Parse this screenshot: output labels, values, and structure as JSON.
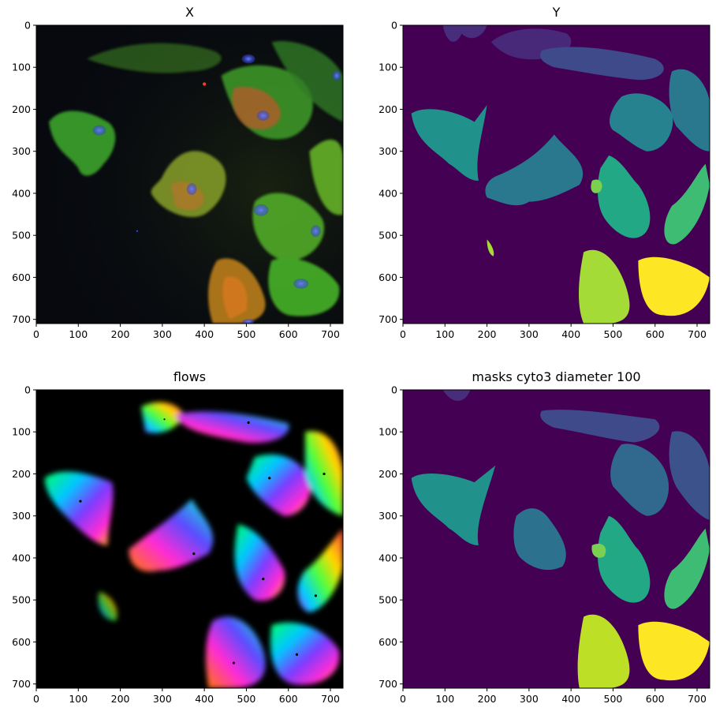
{
  "figure": {
    "panels": [
      {
        "id": "x",
        "title": "X",
        "kind": "microscopy"
      },
      {
        "id": "y",
        "title": "Y",
        "kind": "mask"
      },
      {
        "id": "flows",
        "title": "flows",
        "kind": "flows"
      },
      {
        "id": "masks",
        "title": "masks cyto3 diameter 100",
        "kind": "mask"
      }
    ],
    "x_ticks": [
      "0",
      "100",
      "200",
      "300",
      "400",
      "500",
      "600",
      "700"
    ],
    "y_ticks": [
      "0",
      "100",
      "200",
      "300",
      "400",
      "500",
      "600",
      "700"
    ],
    "image_width": 730,
    "image_height": 710
  },
  "colors": {
    "mask_bg": "#440154",
    "palette": [
      "#472d7b",
      "#3b528b",
      "#2c728e",
      "#21918c",
      "#28ae80",
      "#5ec962",
      "#addc30",
      "#fde725"
    ]
  }
}
